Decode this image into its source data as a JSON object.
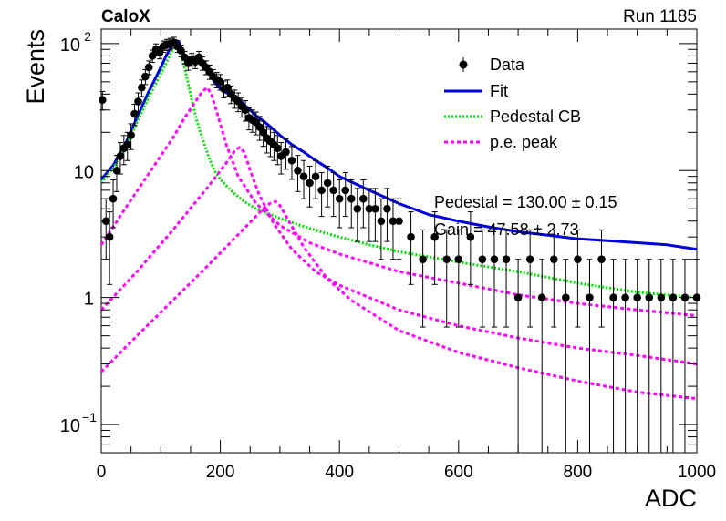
{
  "header": {
    "experiment": "CaloX",
    "run": "Run 1185"
  },
  "fit_box": {
    "line1": "Pedestal = 130.00 ± 0.15",
    "line2": "Gain = 47.58 ± 2.73"
  },
  "chart_data": {
    "type": "scatter",
    "xlabel": "ADC",
    "ylabel": "Events",
    "xlim": [
      0,
      1000
    ],
    "ylim": [
      0.06,
      130
    ],
    "yscale": "log",
    "x_ticks": [
      "0",
      "200",
      "400",
      "600",
      "800",
      "1000"
    ],
    "y_ticks": [
      "10^-1",
      "1",
      "10",
      "10^2"
    ],
    "legend_position": "top-right",
    "legend": [
      {
        "name": "Data",
        "style": "marker-errorbar",
        "color": "#000000"
      },
      {
        "name": "Fit",
        "style": "solid",
        "color": "#0000e0"
      },
      {
        "name": "Pedestal CB",
        "style": "dotted",
        "color": "#00e000"
      },
      {
        "name": "p.e. peak",
        "style": "dashed",
        "color": "#ff00ff"
      }
    ],
    "data_points": {
      "x": [
        2,
        8,
        14,
        20,
        26,
        32,
        38,
        44,
        50,
        56,
        62,
        68,
        74,
        80,
        86,
        92,
        98,
        104,
        110,
        116,
        122,
        128,
        134,
        140,
        146,
        152,
        158,
        164,
        170,
        176,
        182,
        188,
        194,
        200,
        206,
        212,
        218,
        224,
        230,
        236,
        242,
        248,
        254,
        260,
        266,
        272,
        278,
        284,
        290,
        296,
        302,
        310,
        320,
        330,
        340,
        350,
        360,
        370,
        380,
        390,
        400,
        410,
        420,
        430,
        440,
        450,
        460,
        470,
        480,
        490,
        500,
        520,
        540,
        560,
        580,
        600,
        620,
        640,
        660,
        680,
        700,
        720,
        740,
        760,
        780,
        800,
        820,
        840,
        860,
        880,
        900,
        920,
        940,
        960,
        980,
        1000
      ],
      "y": [
        36,
        4,
        3,
        6,
        10,
        13,
        15,
        16,
        19,
        28,
        35,
        45,
        55,
        65,
        80,
        90,
        85,
        95,
        98,
        100,
        102,
        95,
        88,
        78,
        70,
        75,
        72,
        78,
        70,
        65,
        60,
        55,
        52,
        50,
        44,
        45,
        40,
        37,
        35,
        32,
        30,
        26,
        25,
        24,
        22,
        20,
        18,
        17,
        16,
        15,
        13,
        14,
        12,
        10,
        9,
        8,
        9,
        7,
        8,
        7,
        6,
        7,
        6,
        5,
        6,
        5,
        5,
        4,
        5,
        4,
        4,
        3,
        2,
        3,
        2,
        2,
        3,
        2,
        2,
        2,
        1,
        2,
        1,
        2,
        1,
        2,
        1,
        2,
        1,
        1,
        1,
        1,
        1,
        1,
        1,
        1
      ]
    },
    "series": [
      {
        "name": "Fit",
        "x": [
          0,
          20,
          40,
          60,
          80,
          100,
          110,
          120,
          125,
          130,
          135,
          140,
          150,
          160,
          170,
          180,
          190,
          200,
          210,
          220,
          230,
          240,
          250,
          260,
          270,
          280,
          300,
          320,
          340,
          360,
          380,
          400,
          450,
          500,
          550,
          600,
          650,
          700,
          750,
          800,
          850,
          900,
          950,
          1000
        ],
        "y": [
          8.5,
          11,
          16,
          26,
          42,
          65,
          82,
          98,
          106,
          104,
          92,
          78,
          72,
          72,
          70,
          60,
          50,
          44,
          41,
          40,
          37,
          33,
          30,
          27,
          25,
          23,
          19,
          16,
          14,
          12,
          10.5,
          9,
          7,
          5.5,
          4.5,
          4,
          3.6,
          3.3,
          3.1,
          2.9,
          2.8,
          2.7,
          2.6,
          2.4
        ]
      },
      {
        "name": "Pedestal CB",
        "x": [
          0,
          20,
          40,
          60,
          80,
          100,
          110,
          120,
          125,
          130,
          140,
          150,
          160,
          170,
          180,
          190,
          200,
          220,
          240,
          260,
          280,
          300,
          350,
          400,
          450,
          500,
          600,
          700,
          800,
          900,
          1000
        ],
        "y": [
          8,
          10.5,
          15,
          24,
          38,
          58,
          72,
          90,
          95,
          92,
          65,
          40,
          25,
          18,
          13,
          10,
          8.5,
          6.8,
          5.7,
          5,
          4.6,
          4.2,
          3.5,
          3,
          2.6,
          2.3,
          1.9,
          1.6,
          1.3,
          1.1,
          1.0
        ]
      },
      {
        "name": "p.e. peak 1",
        "x": [
          0,
          40,
          80,
          120,
          140,
          160,
          170,
          178,
          185,
          195,
          210,
          230,
          260,
          300,
          350,
          400,
          500,
          600,
          700,
          800,
          900,
          1000
        ],
        "y": [
          2.6,
          5,
          9.5,
          18,
          26,
          36,
          42,
          45,
          40,
          28,
          16,
          9,
          5.5,
          3.7,
          2.7,
          2.2,
          1.6,
          1.3,
          1.05,
          0.9,
          0.8,
          0.72
        ]
      },
      {
        "name": "p.e. peak 2",
        "x": [
          0,
          60,
          120,
          180,
          210,
          225,
          232,
          240,
          250,
          265,
          290,
          320,
          360,
          400,
          500,
          600,
          700,
          800,
          900,
          1000
        ],
        "y": [
          0.8,
          1.6,
          3.4,
          7.5,
          11.5,
          14.5,
          15.2,
          14,
          10,
          6.5,
          3.8,
          2.4,
          1.6,
          1.25,
          0.8,
          0.6,
          0.48,
          0.4,
          0.35,
          0.3
        ]
      },
      {
        "name": "p.e. peak 3",
        "x": [
          0,
          60,
          120,
          180,
          240,
          270,
          285,
          293,
          300,
          315,
          340,
          380,
          420,
          500,
          600,
          700,
          800,
          900,
          1000
        ],
        "y": [
          0.26,
          0.5,
          0.95,
          1.8,
          3.5,
          4.9,
          5.6,
          5.7,
          5.3,
          4,
          2.5,
          1.4,
          0.95,
          0.55,
          0.37,
          0.28,
          0.22,
          0.18,
          0.16
        ]
      }
    ]
  }
}
